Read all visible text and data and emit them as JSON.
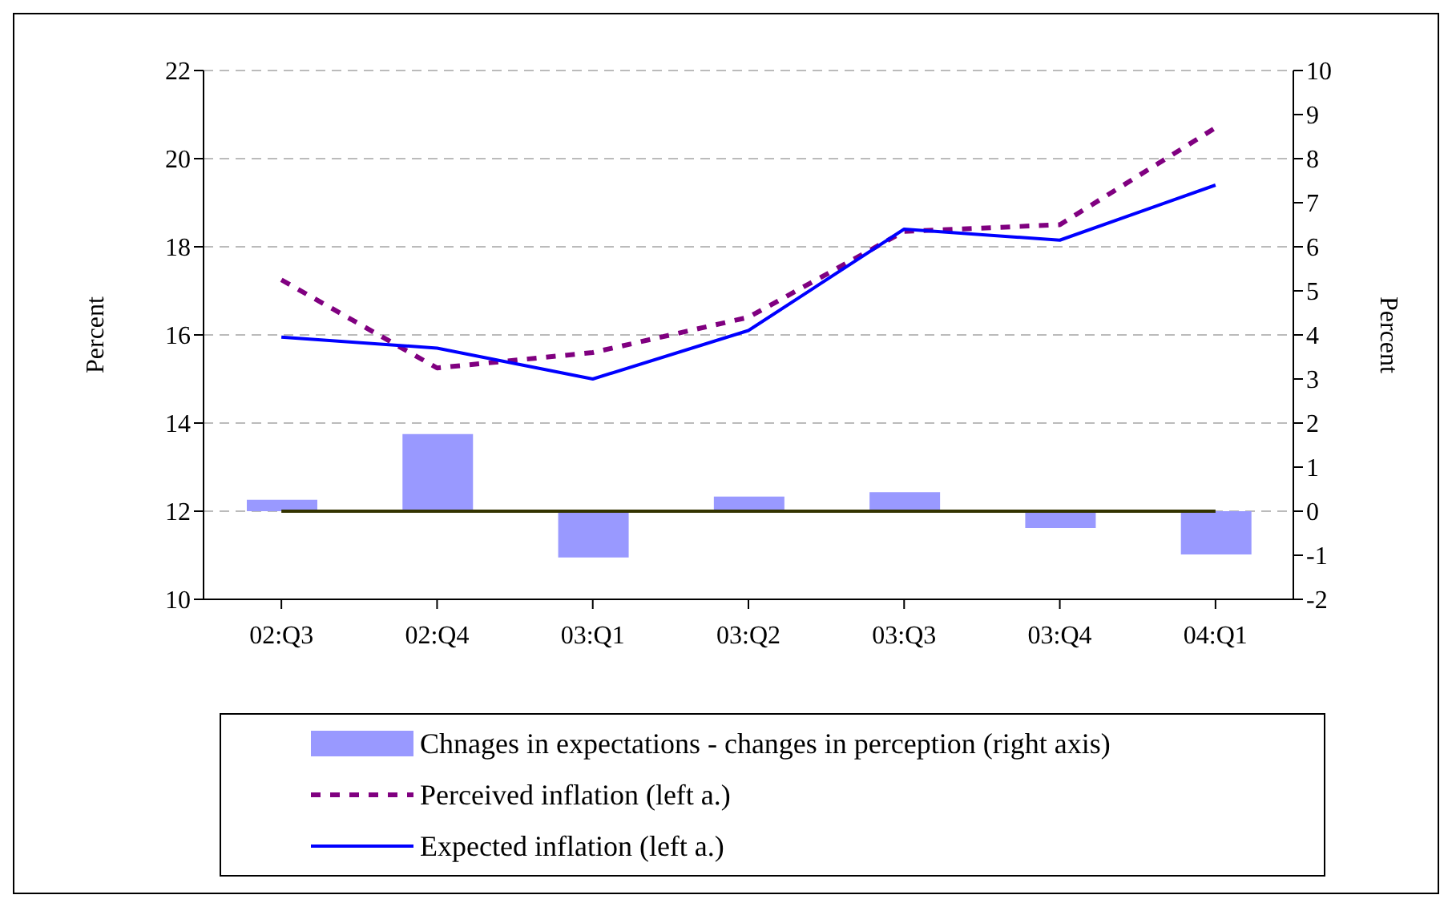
{
  "chart_data": {
    "type": "line",
    "categories": [
      "02:Q3",
      "02:Q4",
      "03:Q1",
      "03:Q2",
      "03:Q3",
      "03:Q4",
      "04:Q1"
    ],
    "series": [
      {
        "name": "Chnages in expectations - changes in perception (right axis)",
        "type": "bar",
        "axis": "y2",
        "color": "#9999ff",
        "values": [
          0.26,
          1.75,
          -1.05,
          0.33,
          0.43,
          -0.38,
          -0.98
        ]
      },
      {
        "name": "Perceived inflation (left a.)",
        "line_style": "dashed",
        "color": "#800080",
        "values": [
          17.25,
          15.25,
          15.6,
          16.4,
          18.35,
          18.5,
          20.7
        ]
      },
      {
        "name": "Expected inflation (left a.)",
        "line_style": "solid",
        "color": "#0000ff",
        "values": [
          15.95,
          15.7,
          15.0,
          16.1,
          18.4,
          18.15,
          19.4
        ]
      }
    ],
    "ylabel": "Percent",
    "y2label": "Percent",
    "ylim": [
      10,
      22
    ],
    "yticks": [
      10,
      12,
      14,
      16,
      18,
      20,
      22
    ],
    "y2lim": [
      -2,
      10
    ],
    "y2ticks": [
      -2,
      -1,
      0,
      1,
      2,
      3,
      4,
      5,
      6,
      7,
      8,
      9,
      10
    ],
    "ref_lines": [
      {
        "axis": "y2",
        "value": 0,
        "color": "#333300"
      }
    ],
    "grid": "y",
    "legend": "bottom",
    "marker": "none"
  }
}
